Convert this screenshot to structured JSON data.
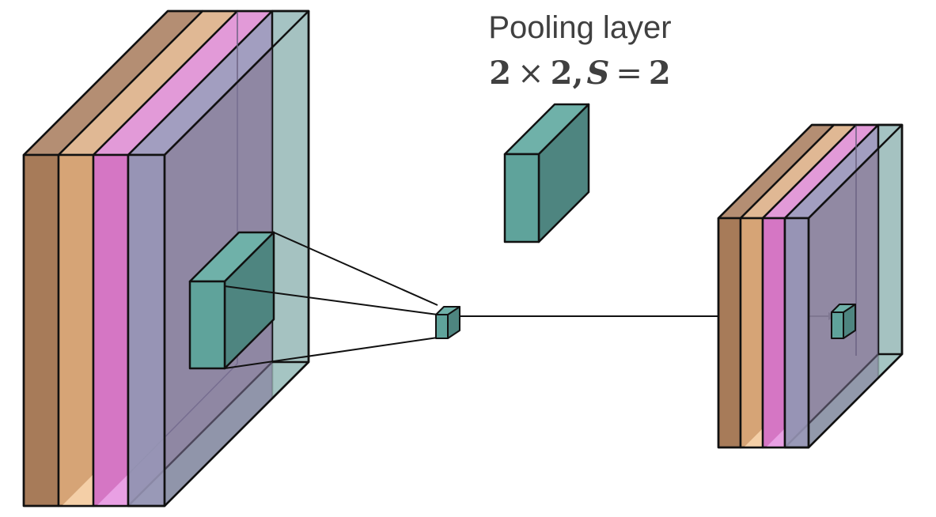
{
  "title": "Pooling layer",
  "formula": {
    "n1": "2",
    "times": "×",
    "n2": "2",
    "comma": ",",
    "s": "S",
    "eq": "=",
    "n3": "2"
  },
  "colors": {
    "brown": "#a77b59",
    "tan": "#d6a476",
    "tan_light": "#f4cfa7",
    "magenta": "#d576c4",
    "magenta_light": "#e9a0e4",
    "lavender": "#8d88ad",
    "lavender_light": "#a29ec0",
    "teal_front": "#5fa39b",
    "teal_side": "#4e8580",
    "teal_top": "#6fb1a9",
    "teal_glass": "#a5c6c3",
    "purple_glass": "#9a86ac",
    "outline": "#111111",
    "text": "#404040"
  }
}
